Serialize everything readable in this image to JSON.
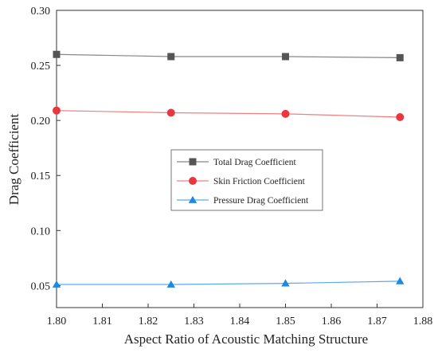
{
  "chart_data": {
    "type": "line",
    "title": "",
    "xlabel": "Aspect Ratio of Acoustic Matching Structure",
    "ylabel": "Drag Coefficient",
    "xlim": [
      1.8,
      1.88
    ],
    "ylim": [
      0.03,
      0.3
    ],
    "x_ticks": [
      "1.80",
      "1.81",
      "1.82",
      "1.83",
      "1.84",
      "1.85",
      "1.86",
      "1.87",
      "1.88"
    ],
    "y_ticks": [
      "0.05",
      "0.10",
      "0.15",
      "0.20",
      "0.25",
      "0.30"
    ],
    "grid": false,
    "legend_position": "center",
    "x": [
      1.8,
      1.825,
      1.85,
      1.875
    ],
    "series": [
      {
        "name": "Total Drag Coefficient",
        "values": [
          0.26,
          0.258,
          0.258,
          0.257
        ],
        "color": "#555555",
        "line_color": "#888888",
        "marker": "square"
      },
      {
        "name": "Skin Friction Coefficient",
        "values": [
          0.209,
          0.207,
          0.206,
          0.203
        ],
        "color": "#e8383d",
        "line_color": "#f08080",
        "marker": "circle"
      },
      {
        "name": "Pressure Drag Coefficient",
        "values": [
          0.051,
          0.051,
          0.052,
          0.054
        ],
        "color": "#1e88e5",
        "line_color": "#5aaaf0",
        "marker": "triangle"
      }
    ]
  }
}
